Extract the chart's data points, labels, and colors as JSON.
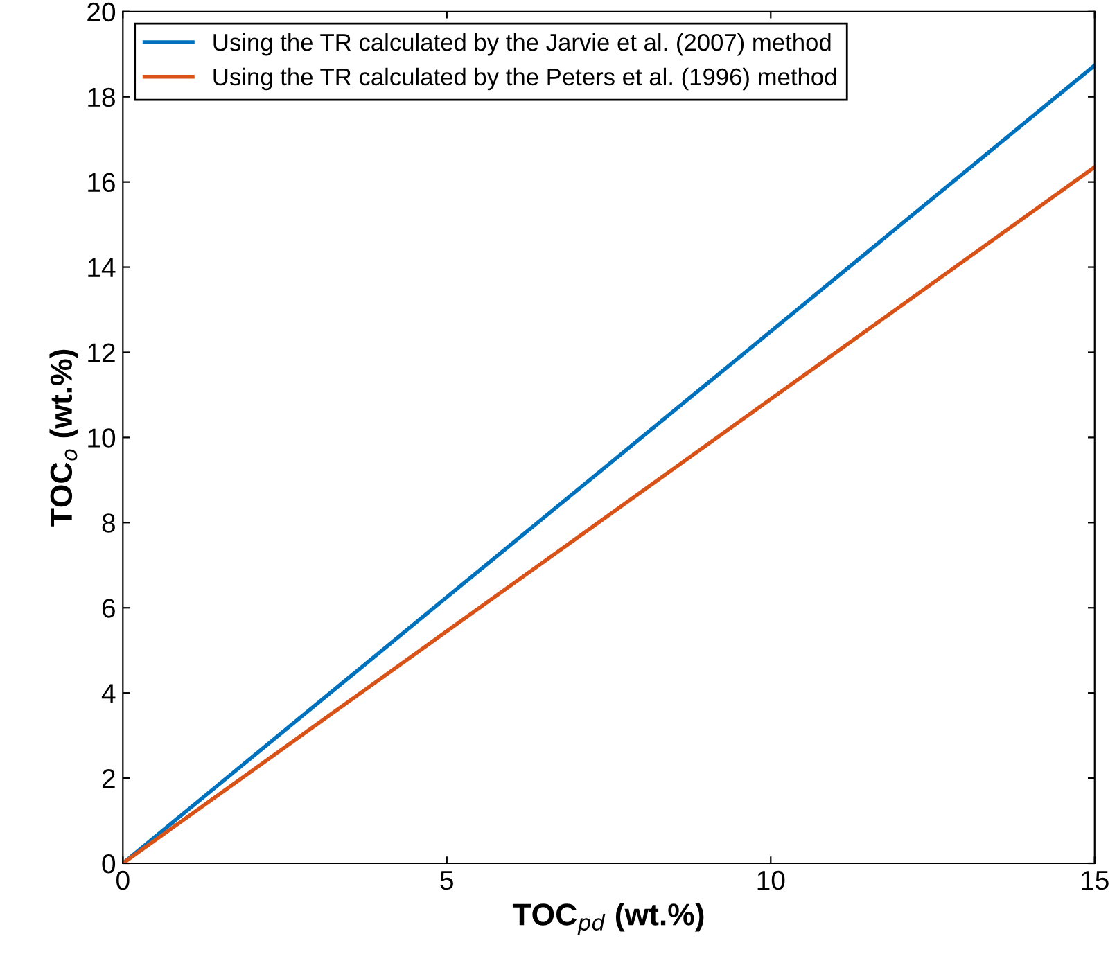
{
  "chart_data": {
    "type": "line",
    "xlabel": "TOC$_{pd}$ (wt.%)",
    "ylabel": "TOC$_{o}$ (wt.%)",
    "x": [
      0,
      5,
      10,
      15
    ],
    "series": [
      {
        "name": "Using the TR calculated by the Jarvie et al. (2007) method",
        "color": "#0072bd",
        "values": [
          0,
          6.25,
          12.49,
          18.74
        ]
      },
      {
        "name": "Using the TR calculated by the Peters et al. (1996) method",
        "color": "#d95319",
        "values": [
          0,
          5.45,
          10.9,
          16.35
        ]
      }
    ],
    "xlim": [
      0,
      15
    ],
    "ylim": [
      0,
      20
    ],
    "xticks": [
      0,
      5,
      10,
      15
    ],
    "yticks": [
      0,
      2,
      4,
      6,
      8,
      10,
      12,
      14,
      16,
      18,
      20
    ],
    "legend": "top left",
    "grid": false,
    "marker": "none",
    "line_style": "solid"
  }
}
